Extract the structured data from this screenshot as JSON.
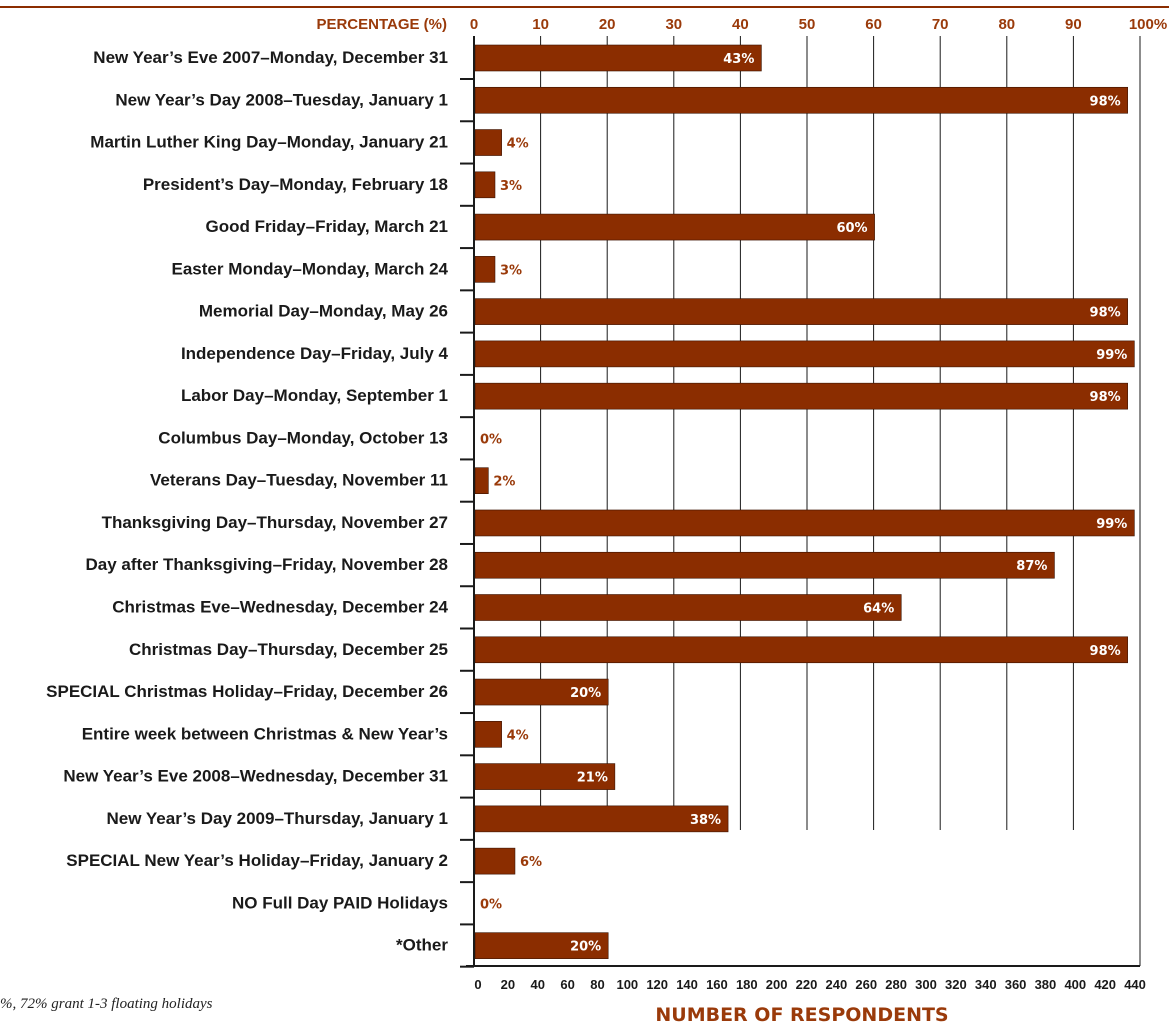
{
  "chart_data": {
    "type": "bar",
    "orientation": "horizontal",
    "top_axis_title": "PERCENTAGE (%)",
    "top_ticks": [
      "0",
      "10",
      "20",
      "30",
      "40",
      "50",
      "60",
      "70",
      "80",
      "90",
      "100%"
    ],
    "bottom_ticks": [
      "0",
      "20",
      "40",
      "60",
      "80",
      "100",
      "120",
      "140",
      "160",
      "180",
      "200",
      "220",
      "240",
      "260",
      "280",
      "300",
      "320",
      "340",
      "360",
      "380",
      "400",
      "420",
      "440"
    ],
    "xlabel": "NUMBER OF RESPONDENTS",
    "xlim": [
      0,
      100
    ],
    "grid": true,
    "categories": [
      "New Year’s Eve 2007–Monday, December 31",
      "New Year’s Day 2008–Tuesday, January 1",
      "Martin Luther King Day–Monday, January 21",
      "President’s Day–Monday, February 18",
      "Good Friday–Friday, March 21",
      "Easter Monday–Monday, March 24",
      "Memorial Day–Monday, May 26",
      "Independence Day–Friday, July 4",
      "Labor Day–Monday, September 1",
      "Columbus Day–Monday, October 13",
      "Veterans Day–Tuesday, November 11",
      "Thanksgiving Day–Thursday, November 27",
      "Day after Thanksgiving–Friday, November 28",
      "Christmas Eve–Wednesday, December 24",
      "Christmas Day–Thursday, December 25",
      "SPECIAL Christmas Holiday–Friday, December 26",
      "Entire week between Christmas & New Year’s",
      "New Year’s Eve 2008–Wednesday, December 31",
      "New Year’s Day 2009–Thursday, January 1",
      "SPECIAL New Year’s Holiday–Friday, January 2",
      "NO Full Day PAID Holidays",
      "*Other"
    ],
    "values": [
      43,
      98,
      4,
      3,
      60,
      3,
      98,
      99,
      98,
      0,
      2,
      99,
      87,
      64,
      98,
      20,
      4,
      21,
      38,
      6,
      0,
      20
    ],
    "value_labels": [
      "43%",
      "98%",
      "4%",
      "3%",
      "60%",
      "3%",
      "98%",
      "99%",
      "98%",
      "0%",
      "2%",
      "99%",
      "87%",
      "64%",
      "98%",
      "20%",
      "4%",
      "21%",
      "38%",
      "6%",
      "0%",
      "20%"
    ]
  },
  "footnote": "%, 72% grant 1-3 floating holidays",
  "colors": {
    "bar": "#8b2d00",
    "accent_text": "#9a3a0a",
    "axis": "#1a1a1a",
    "grid": "#1a1a1a",
    "inside_label": "#ffffff"
  }
}
